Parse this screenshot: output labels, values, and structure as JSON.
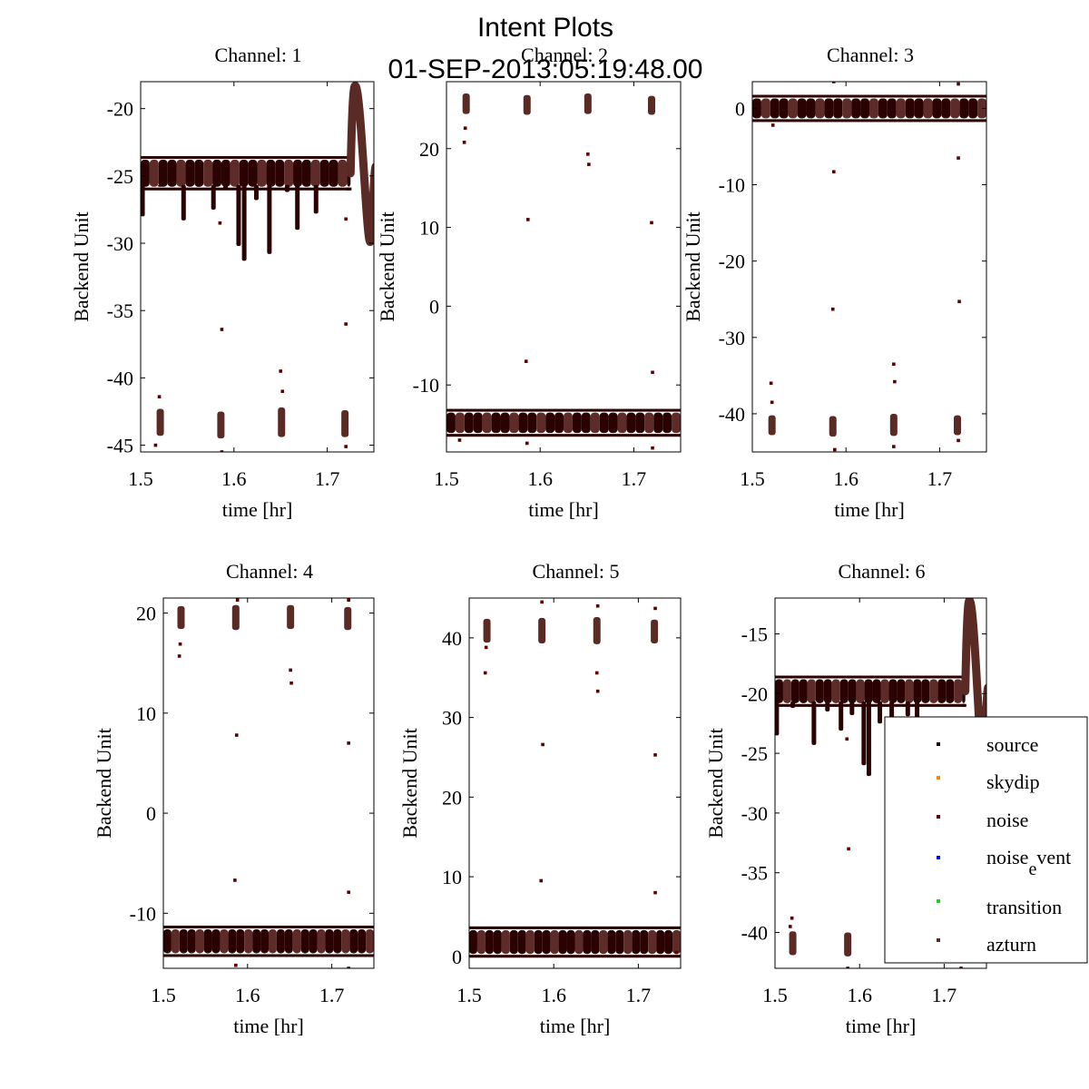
{
  "figure": {
    "title": "Intent Plots",
    "subtitle": "01-SEP-2013:05:19:48.00"
  },
  "colors": {
    "source": "#1a0000",
    "skydip": "#ff7f0e",
    "noise": "#5a0000",
    "noise_event": "#0000ff",
    "transition": "#22cc22",
    "azturn": "#5a2a25",
    "band_dark": "#2b0202",
    "band_light": "#5e2c28"
  },
  "legend": {
    "location": "lower-right",
    "entries": [
      {
        "key": "source",
        "label": "source",
        "color": "#1a0000"
      },
      {
        "key": "skydip",
        "label": "skydip",
        "color": "#ff7f0e"
      },
      {
        "key": "noise",
        "label": "noise",
        "color": "#5a0000"
      },
      {
        "key": "noise_event",
        "label_main": "noise",
        "label_sub": "e",
        "label_rest": "vent",
        "color": "#0000ff"
      },
      {
        "key": "transition",
        "label": "transition",
        "color": "#22cc22"
      },
      {
        "key": "azturn",
        "label": "azturn",
        "color": "#5a2a25"
      }
    ]
  },
  "chart_data": [
    {
      "type": "scatter",
      "title": "Channel: 1",
      "xlabel": "time [hr]",
      "ylabel": "Backend Unit",
      "xlim": [
        1.5,
        1.75
      ],
      "ylim": [
        -45.5,
        -18
      ],
      "xticks": [
        1.5,
        1.6,
        1.7
      ],
      "xticklabels": [
        "1.5",
        "1.6",
        "1.7"
      ],
      "yticks": [
        -45,
        -40,
        -35,
        -30,
        -25,
        -20
      ],
      "yticklabels": [
        "-45",
        "-40",
        "-35",
        "-30",
        "-25",
        "-20"
      ],
      "baseline": -24.8,
      "band_halfwidth": 1.0,
      "band_end": 1.725,
      "dips": [
        [
          1.502,
          -28.0
        ],
        [
          1.521,
          -25.8
        ],
        [
          1.546,
          -28.3
        ],
        [
          1.562,
          -25.7
        ],
        [
          1.578,
          -27.5
        ],
        [
          1.591,
          -26.0
        ],
        [
          1.605,
          -30.2
        ],
        [
          1.611,
          -31.3
        ],
        [
          1.624,
          -26.8
        ],
        [
          1.638,
          -30.8
        ],
        [
          1.657,
          -26.2
        ],
        [
          1.668,
          -29.0
        ],
        [
          1.688,
          -27.8
        ]
      ],
      "bump": {
        "start": 1.725,
        "peak_x": 1.73,
        "peak_y": -18.3,
        "min_x": 1.746,
        "min_y": -29.9,
        "end_y": -24.3
      },
      "clusters": [
        {
          "x": 1.521,
          "y1": -44.3,
          "y2": -42.3
        },
        {
          "x": 1.586,
          "y1": -44.5,
          "y2": -42.5
        },
        {
          "x": 1.651,
          "y1": -44.4,
          "y2": -42.2
        },
        {
          "x": 1.719,
          "y1": -44.4,
          "y2": -42.4
        }
      ],
      "outliers": [
        [
          1.52,
          -41.4
        ],
        [
          1.516,
          -45.0
        ],
        [
          1.587,
          -36.4
        ],
        [
          1.587,
          -45.5
        ],
        [
          1.585,
          -28.5
        ],
        [
          1.65,
          -39.5
        ],
        [
          1.652,
          -41.0
        ],
        [
          1.72,
          -36.0
        ],
        [
          1.72,
          -28.2
        ],
        [
          1.72,
          -45.1
        ]
      ]
    },
    {
      "type": "scatter",
      "title": "Channel: 2",
      "xlabel": "time [hr]",
      "ylabel": "Backend Unit",
      "xlim": [
        1.5,
        1.75
      ],
      "ylim": [
        -18.5,
        28.5
      ],
      "xticks": [
        1.5,
        1.6,
        1.7
      ],
      "xticklabels": [
        "1.5",
        "1.6",
        "1.7"
      ],
      "yticks": [
        -10,
        0,
        10,
        20
      ],
      "yticklabels": [
        "-10",
        "0",
        "10",
        "20"
      ],
      "baseline": -14.8,
      "band_halfwidth": 1.3,
      "band_end": 1.75,
      "dips": [],
      "clusters": [
        {
          "x": 1.521,
          "y1": 24.4,
          "y2": 27.0
        },
        {
          "x": 1.586,
          "y1": 24.3,
          "y2": 26.8
        },
        {
          "x": 1.651,
          "y1": 24.4,
          "y2": 27.0
        },
        {
          "x": 1.719,
          "y1": 24.3,
          "y2": 26.7
        }
      ],
      "outliers": [
        [
          1.52,
          22.6
        ],
        [
          1.519,
          20.8
        ],
        [
          1.587,
          11.0
        ],
        [
          1.585,
          -7.0
        ],
        [
          1.586,
          -17.4
        ],
        [
          1.651,
          19.3
        ],
        [
          1.652,
          18.0
        ],
        [
          1.719,
          10.6
        ],
        [
          1.72,
          -8.4
        ],
        [
          1.72,
          -18.0
        ],
        [
          1.514,
          -17.0
        ]
      ]
    },
    {
      "type": "scatter",
      "title": "Channel: 3",
      "xlabel": "time [hr]",
      "ylabel": "Backend Unit",
      "xlim": [
        1.5,
        1.75
      ],
      "ylim": [
        -45,
        3.5
      ],
      "xticks": [
        1.5,
        1.6,
        1.7
      ],
      "xticklabels": [
        "1.5",
        "1.6",
        "1.7"
      ],
      "yticks": [
        -40,
        -30,
        -20,
        -10,
        0
      ],
      "yticklabels": [
        "-40",
        "-30",
        "-20",
        "-10",
        "0"
      ],
      "baseline": 0.0,
      "band_halfwidth": 1.3,
      "band_end": 1.75,
      "dips": [],
      "clusters": [
        {
          "x": 1.521,
          "y1": -42.8,
          "y2": -40.2
        },
        {
          "x": 1.586,
          "y1": -43.0,
          "y2": -40.3
        },
        {
          "x": 1.651,
          "y1": -42.9,
          "y2": -40.0
        },
        {
          "x": 1.719,
          "y1": -42.8,
          "y2": -40.2
        }
      ],
      "outliers": [
        [
          1.52,
          -36.0
        ],
        [
          1.521,
          -38.5
        ],
        [
          1.587,
          -8.3
        ],
        [
          1.586,
          -26.3
        ],
        [
          1.588,
          -44.7
        ],
        [
          1.587,
          3.5
        ],
        [
          1.651,
          -33.5
        ],
        [
          1.652,
          -35.8
        ],
        [
          1.651,
          -44.3
        ],
        [
          1.72,
          -6.5
        ],
        [
          1.721,
          -25.3
        ],
        [
          1.72,
          3.2
        ],
        [
          1.72,
          -43.5
        ],
        [
          1.522,
          -2.2
        ]
      ]
    },
    {
      "type": "scatter",
      "title": "Channel: 4",
      "xlabel": "time [hr]",
      "ylabel": "Backend Unit",
      "xlim": [
        1.5,
        1.75
      ],
      "ylim": [
        -15.5,
        21.5
      ],
      "xticks": [
        1.5,
        1.6,
        1.7
      ],
      "xticklabels": [
        "1.5",
        "1.6",
        "1.7"
      ],
      "yticks": [
        -10,
        0,
        10,
        20
      ],
      "yticklabels": [
        "-10",
        "0",
        "10",
        "20"
      ],
      "baseline": -12.8,
      "band_halfwidth": 1.2,
      "band_end": 1.75,
      "dips": [],
      "clusters": [
        {
          "x": 1.521,
          "y1": 18.4,
          "y2": 20.7
        },
        {
          "x": 1.586,
          "y1": 18.3,
          "y2": 20.8
        },
        {
          "x": 1.651,
          "y1": 18.4,
          "y2": 20.8
        },
        {
          "x": 1.719,
          "y1": 18.3,
          "y2": 20.6
        }
      ],
      "outliers": [
        [
          1.52,
          16.9
        ],
        [
          1.519,
          15.7
        ],
        [
          1.587,
          7.8
        ],
        [
          1.585,
          -6.7
        ],
        [
          1.588,
          21.3
        ],
        [
          1.586,
          -15.2
        ],
        [
          1.651,
          14.3
        ],
        [
          1.652,
          13.0
        ],
        [
          1.72,
          7.0
        ],
        [
          1.72,
          -7.9
        ],
        [
          1.72,
          21.3
        ],
        [
          1.72,
          -15.5
        ]
      ]
    },
    {
      "type": "scatter",
      "title": "Channel: 5",
      "xlabel": "time [hr]",
      "ylabel": "Backend Unit",
      "xlim": [
        1.5,
        1.75
      ],
      "ylim": [
        -1.5,
        45
      ],
      "xticks": [
        1.5,
        1.6,
        1.7
      ],
      "xticklabels": [
        "1.5",
        "1.6",
        "1.7"
      ],
      "yticks": [
        0,
        10,
        20,
        30,
        40
      ],
      "yticklabels": [
        "0",
        "10",
        "20",
        "30",
        "40"
      ],
      "baseline": 1.8,
      "band_halfwidth": 1.5,
      "band_end": 1.75,
      "dips": [],
      "clusters": [
        {
          "x": 1.521,
          "y1": 39.4,
          "y2": 42.4
        },
        {
          "x": 1.586,
          "y1": 39.3,
          "y2": 42.5
        },
        {
          "x": 1.651,
          "y1": 39.2,
          "y2": 42.6
        },
        {
          "x": 1.719,
          "y1": 39.3,
          "y2": 42.3
        }
      ],
      "outliers": [
        [
          1.52,
          38.8
        ],
        [
          1.519,
          35.6
        ],
        [
          1.587,
          26.6
        ],
        [
          1.585,
          9.5
        ],
        [
          1.586,
          44.5
        ],
        [
          1.651,
          35.6
        ],
        [
          1.652,
          33.3
        ],
        [
          1.652,
          44.0
        ],
        [
          1.72,
          25.3
        ],
        [
          1.72,
          8.0
        ],
        [
          1.72,
          43.7
        ],
        [
          1.745,
          0.5
        ]
      ]
    },
    {
      "type": "scatter",
      "title": "Channel: 6",
      "xlabel": "time [hr]",
      "ylabel": "Backend Unit",
      "xlim": [
        1.5,
        1.75
      ],
      "ylim": [
        -43,
        -12
      ],
      "xticks": [
        1.5,
        1.6,
        1.7
      ],
      "xticklabels": [
        "1.5",
        "1.6",
        "1.7"
      ],
      "yticks": [
        -40,
        -35,
        -30,
        -25,
        -20,
        -15
      ],
      "yticklabels": [
        "-40",
        "-35",
        "-30",
        "-25",
        "-20",
        "-15"
      ],
      "baseline": -19.8,
      "band_halfwidth": 1.0,
      "band_end": 1.725,
      "dips": [
        [
          1.502,
          -23.5
        ],
        [
          1.521,
          -21.2
        ],
        [
          1.546,
          -24.3
        ],
        [
          1.562,
          -21.5
        ],
        [
          1.578,
          -23.1
        ],
        [
          1.591,
          -21.8
        ],
        [
          1.605,
          -26.0
        ],
        [
          1.611,
          -26.9
        ],
        [
          1.624,
          -22.5
        ],
        [
          1.638,
          -26.7
        ],
        [
          1.657,
          -21.9
        ],
        [
          1.668,
          -24.5
        ]
      ],
      "bump": {
        "start": 1.725,
        "peak_x": 1.73,
        "peak_y": -12.2,
        "min_x": 1.746,
        "min_y": -26.0,
        "end_y": -19.5
      },
      "clusters": [
        {
          "x": 1.521,
          "y1": -41.9,
          "y2": -39.9
        },
        {
          "x": 1.586,
          "y1": -42.0,
          "y2": -40.0
        }
      ],
      "outliers": [
        [
          1.52,
          -38.8
        ],
        [
          1.518,
          -39.5
        ],
        [
          1.587,
          -33.0
        ],
        [
          1.586,
          -43.0
        ],
        [
          1.585,
          -23.8
        ],
        [
          1.72,
          -43.0
        ]
      ]
    }
  ]
}
